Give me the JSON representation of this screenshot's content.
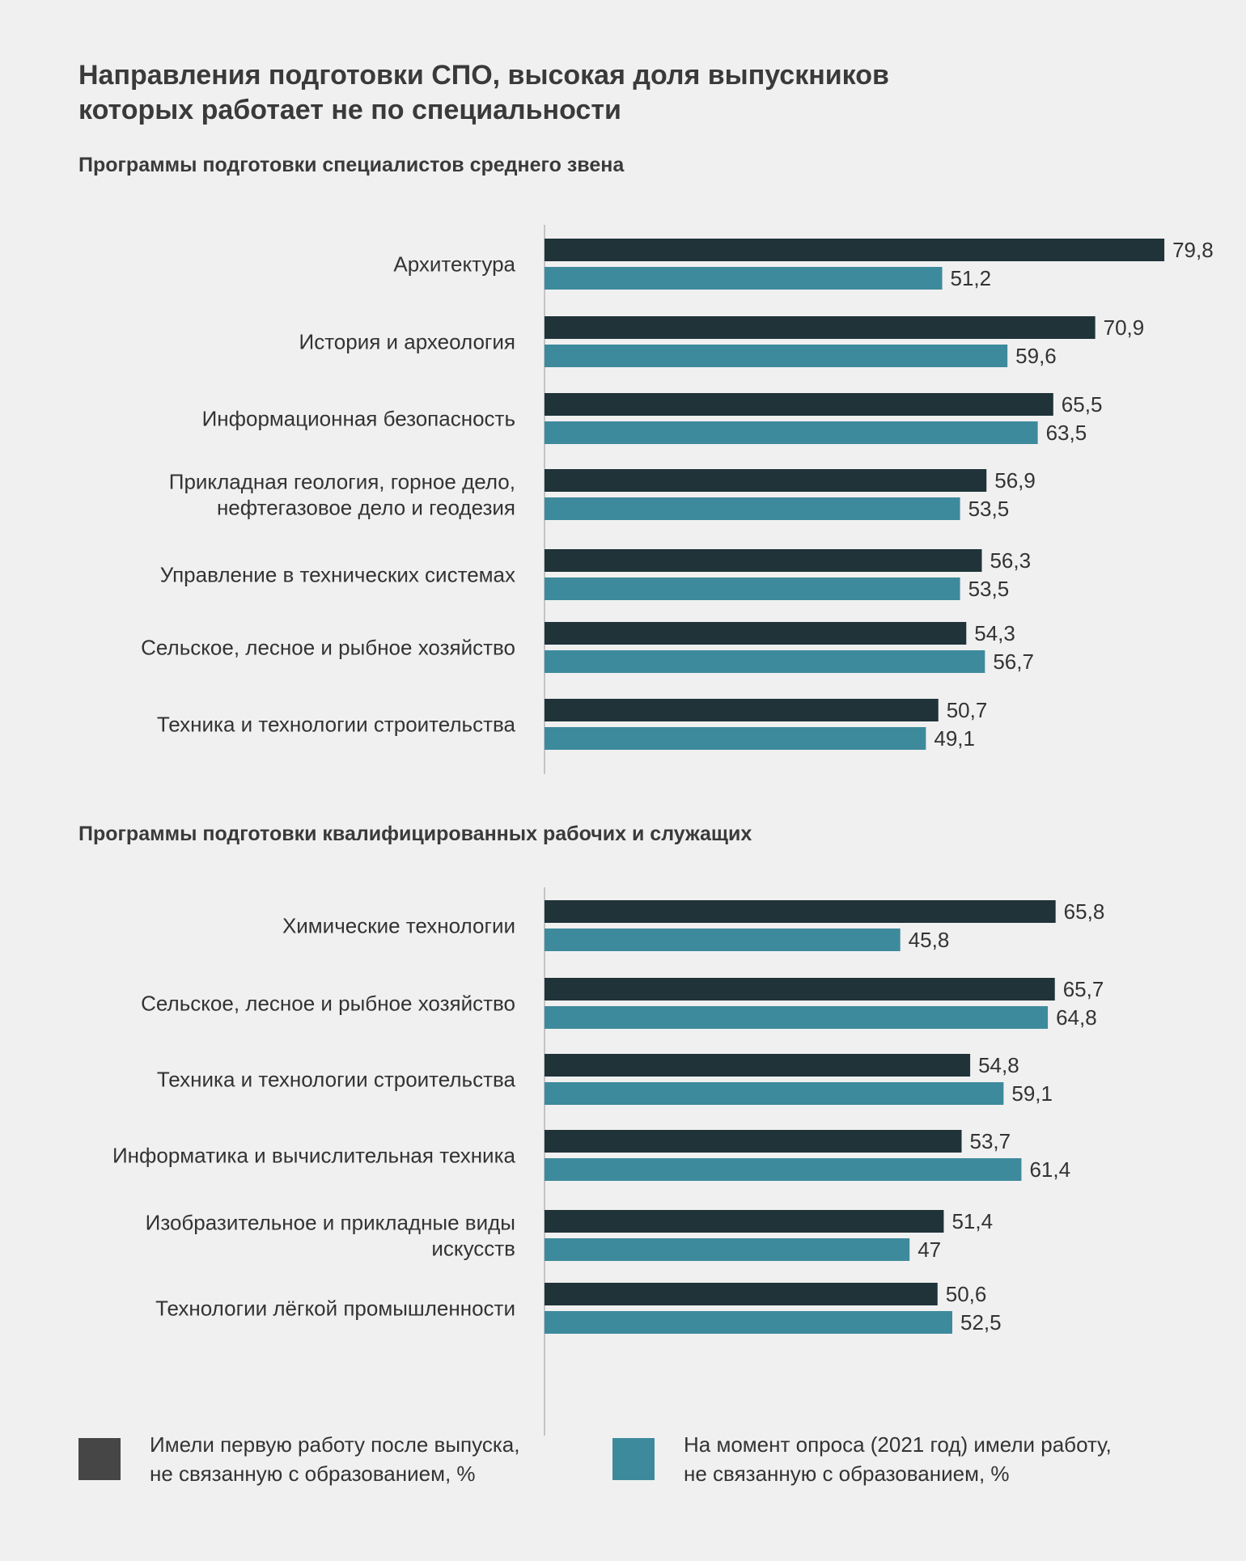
{
  "title": {
    "line1": "Направления подготовки СПО, высокая доля выпускников",
    "line2": "которых работает не по специальности"
  },
  "colors": {
    "first_job": "#1f3339",
    "current_job": "#3d8a9c",
    "legend_first_job": "#464646",
    "legend_current_job": "#3d8a9c",
    "axis": "#999999"
  },
  "legend": {
    "first_job": {
      "line1": "Имели первую работу после выпуска,",
      "line2": "не связанную с образованием, %"
    },
    "current_job": {
      "line1": "На момент опроса (2021 год) имели работу,",
      "line2": "не связанную с образованием, %"
    }
  },
  "chart_data": [
    {
      "type": "bar",
      "orientation": "horizontal",
      "subtitle": "Программы подготовки специалистов среднего звена",
      "categories": [
        [
          "Архитектура"
        ],
        [
          "История и археология"
        ],
        [
          "Информационная безопасность"
        ],
        [
          "Прикладная геология, горное дело,",
          "нефтегазовое дело и геодезия"
        ],
        [
          "Управление в технических системах"
        ],
        [
          "Сельское, лесное и рыбное хозяйство"
        ],
        [
          "Техника и технологии строительства"
        ]
      ],
      "series": [
        {
          "name": "Имели первую работу после выпуска, не связанную с образованием, %",
          "values": [
            79.8,
            70.9,
            65.5,
            56.9,
            56.3,
            54.3,
            50.7
          ],
          "labels": [
            "79,8",
            "70,9",
            "65,5",
            "56,9",
            "56,3",
            "54,3",
            "50,7"
          ]
        },
        {
          "name": "На момент опроса (2021 год) имели работу, не связанную с образованием, %",
          "values": [
            51.2,
            59.6,
            63.5,
            53.5,
            53.5,
            56.7,
            49.1
          ],
          "labels": [
            "51,2",
            "59,6",
            "63,5",
            "53,5",
            "53,5",
            "56,7",
            "49,1"
          ]
        }
      ],
      "xlim": [
        0,
        80
      ]
    },
    {
      "type": "bar",
      "orientation": "horizontal",
      "subtitle": "Программы подготовки квалифицированных рабочих и служащих",
      "categories": [
        [
          "Химические технологии"
        ],
        [
          "Сельское, лесное и рыбное хозяйство"
        ],
        [
          "Техника и технологии строительства"
        ],
        [
          "Информатика и вычислительная техника"
        ],
        [
          "Изобразительное и прикладные виды",
          "искусств"
        ],
        [
          "Технологии лёгкой промышленности"
        ]
      ],
      "series": [
        {
          "name": "Имели первую работу после выпуска, не связанную с образованием, %",
          "values": [
            65.8,
            65.7,
            54.8,
            53.7,
            51.4,
            50.6
          ],
          "labels": [
            "65,8",
            "65,7",
            "54,8",
            "53,7",
            "51,4",
            "50,6"
          ]
        },
        {
          "name": "На момент опроса (2021 год) имели работу, не связанную с образованием, %",
          "values": [
            45.8,
            64.8,
            59.1,
            61.4,
            47,
            52.5
          ],
          "labels": [
            "45,8",
            "64,8",
            "59,1",
            "61,4",
            "47",
            "52,5"
          ]
        }
      ],
      "xlim": [
        0,
        80
      ]
    }
  ]
}
